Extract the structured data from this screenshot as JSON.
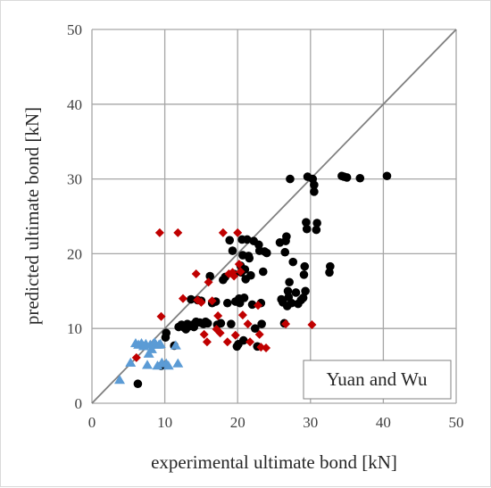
{
  "chart_data": {
    "type": "scatter",
    "title": "",
    "xlabel": "experimental ultimate bond [kN]",
    "ylabel": "predicted ultimate bond [kN]",
    "xlim": [
      0,
      50
    ],
    "ylim": [
      0,
      50
    ],
    "x_ticks": [
      "0",
      "10",
      "20",
      "30",
      "40",
      "50"
    ],
    "y_ticks": [
      "0",
      "10",
      "20",
      "30",
      "40",
      "50"
    ],
    "grid": true,
    "reference_line": {
      "from": [
        0,
        0
      ],
      "to": [
        50,
        50
      ],
      "color": "#808080"
    },
    "annotation": "Yuan and Wu",
    "annotation_position": "bottom-right",
    "colors": {
      "series_black": "#000000",
      "series_red": "#c00000",
      "series_blue": "#5b9bd5",
      "grid": "#a6a6a6"
    },
    "series": [
      {
        "marker": "circle",
        "color": "#000000",
        "points": [
          [
            6.3,
            2.6
          ],
          [
            10.1,
            8.8
          ],
          [
            10.2,
            9.4
          ],
          [
            10.0,
            5.1
          ],
          [
            9.5,
            5.0
          ],
          [
            11.3,
            7.7
          ],
          [
            11.9,
            10.2
          ],
          [
            12.3,
            10.5
          ],
          [
            12.7,
            10.1
          ],
          [
            12.9,
            9.9
          ],
          [
            13.1,
            10.6
          ],
          [
            13.4,
            10.3
          ],
          [
            13.6,
            13.9
          ],
          [
            13.8,
            10.5
          ],
          [
            14.0,
            10.2
          ],
          [
            14.3,
            10.9
          ],
          [
            14.5,
            13.8
          ],
          [
            14.8,
            10.8
          ],
          [
            15.0,
            13.7
          ],
          [
            15.3,
            10.6
          ],
          [
            15.6,
            10.9
          ],
          [
            15.9,
            10.7
          ],
          [
            16.2,
            17.0
          ],
          [
            16.5,
            13.4
          ],
          [
            17.0,
            13.6
          ],
          [
            17.2,
            10.5
          ],
          [
            17.7,
            10.7
          ],
          [
            18.0,
            16.5
          ],
          [
            18.3,
            16.9
          ],
          [
            18.6,
            13.4
          ],
          [
            18.9,
            21.8
          ],
          [
            19.1,
            10.6
          ],
          [
            19.3,
            20.4
          ],
          [
            19.5,
            17.3
          ],
          [
            19.7,
            13.6
          ],
          [
            19.9,
            7.6
          ],
          [
            20.1,
            7.9
          ],
          [
            20.2,
            14.0
          ],
          [
            20.3,
            13.4
          ],
          [
            20.4,
            18.4
          ],
          [
            20.5,
            17.5
          ],
          [
            20.6,
            21.9
          ],
          [
            20.7,
            19.8
          ],
          [
            20.8,
            8.4
          ],
          [
            20.9,
            14.1
          ],
          [
            21.0,
            17.9
          ],
          [
            21.1,
            16.6
          ],
          [
            21.3,
            21.9
          ],
          [
            21.5,
            19.7
          ],
          [
            21.6,
            19.4
          ],
          [
            21.8,
            17.1
          ],
          [
            22.0,
            13.2
          ],
          [
            22.2,
            21.7
          ],
          [
            22.4,
            10.0
          ],
          [
            22.7,
            7.6
          ],
          [
            22.9,
            21.2
          ],
          [
            23.0,
            20.4
          ],
          [
            23.2,
            13.4
          ],
          [
            23.3,
            10.6
          ],
          [
            23.5,
            17.6
          ],
          [
            23.7,
            20.3
          ],
          [
            24.0,
            20.1
          ],
          [
            25.8,
            21.5
          ],
          [
            26.0,
            13.9
          ],
          [
            26.2,
            13.5
          ],
          [
            26.4,
            10.7
          ],
          [
            26.5,
            20.2
          ],
          [
            26.6,
            21.7
          ],
          [
            26.7,
            22.3
          ],
          [
            26.8,
            13.0
          ],
          [
            26.9,
            15.0
          ],
          [
            27.0,
            14.2
          ],
          [
            27.1,
            16.2
          ],
          [
            27.2,
            30.0
          ],
          [
            27.4,
            13.4
          ],
          [
            27.6,
            18.9
          ],
          [
            28.0,
            14.8
          ],
          [
            28.3,
            13.3
          ],
          [
            28.7,
            13.8
          ],
          [
            29.0,
            14.1
          ],
          [
            29.1,
            17.2
          ],
          [
            29.2,
            18.3
          ],
          [
            29.3,
            15.0
          ],
          [
            29.4,
            24.2
          ],
          [
            29.5,
            23.3
          ],
          [
            29.6,
            30.3
          ],
          [
            30.3,
            30.0
          ],
          [
            30.5,
            29.2
          ],
          [
            30.5,
            28.3
          ],
          [
            30.8,
            23.2
          ],
          [
            30.9,
            24.1
          ],
          [
            32.6,
            17.5
          ],
          [
            32.7,
            18.3
          ],
          [
            34.3,
            30.4
          ],
          [
            34.6,
            30.3
          ],
          [
            35.0,
            30.2
          ],
          [
            36.8,
            30.1
          ],
          [
            40.5,
            30.4
          ]
        ]
      },
      {
        "marker": "diamond",
        "color": "#c00000",
        "points": [
          [
            6.1,
            6.1
          ],
          [
            9.3,
            22.8
          ],
          [
            9.5,
            11.6
          ],
          [
            11.8,
            22.8
          ],
          [
            12.5,
            14.0
          ],
          [
            14.3,
            17.3
          ],
          [
            14.5,
            13.8
          ],
          [
            15.0,
            13.5
          ],
          [
            15.4,
            9.2
          ],
          [
            15.8,
            8.2
          ],
          [
            16.0,
            16.2
          ],
          [
            16.5,
            13.7
          ],
          [
            17.1,
            9.9
          ],
          [
            17.3,
            11.7
          ],
          [
            17.6,
            9.4
          ],
          [
            18.0,
            22.8
          ],
          [
            18.6,
            8.2
          ],
          [
            18.8,
            17.3
          ],
          [
            19.3,
            17.5
          ],
          [
            19.5,
            17.0
          ],
          [
            19.7,
            9.1
          ],
          [
            20.0,
            22.8
          ],
          [
            20.2,
            18.6
          ],
          [
            20.4,
            17.6
          ],
          [
            20.7,
            11.8
          ],
          [
            21.4,
            10.6
          ],
          [
            21.7,
            8.2
          ],
          [
            22.8,
            13.1
          ],
          [
            23.0,
            9.2
          ],
          [
            23.2,
            7.5
          ],
          [
            23.9,
            7.4
          ],
          [
            26.6,
            10.6
          ],
          [
            30.2,
            10.5
          ]
        ]
      },
      {
        "marker": "triangle",
        "color": "#5b9bd5",
        "points": [
          [
            3.8,
            3.1
          ],
          [
            5.3,
            5.4
          ],
          [
            6.0,
            8.0
          ],
          [
            6.4,
            7.8
          ],
          [
            6.8,
            8.0
          ],
          [
            7.1,
            7.6
          ],
          [
            7.4,
            7.9
          ],
          [
            7.6,
            5.1
          ],
          [
            7.8,
            6.6
          ],
          [
            8.0,
            7.8
          ],
          [
            8.2,
            7.2
          ],
          [
            8.4,
            7.9
          ],
          [
            8.6,
            8.1
          ],
          [
            8.8,
            7.8
          ],
          [
            9.0,
            5.0
          ],
          [
            9.2,
            7.8
          ],
          [
            9.4,
            7.9
          ],
          [
            9.6,
            5.4
          ],
          [
            10.2,
            5.3
          ],
          [
            10.5,
            5.0
          ],
          [
            11.5,
            7.7
          ],
          [
            11.8,
            5.3
          ]
        ]
      }
    ]
  }
}
